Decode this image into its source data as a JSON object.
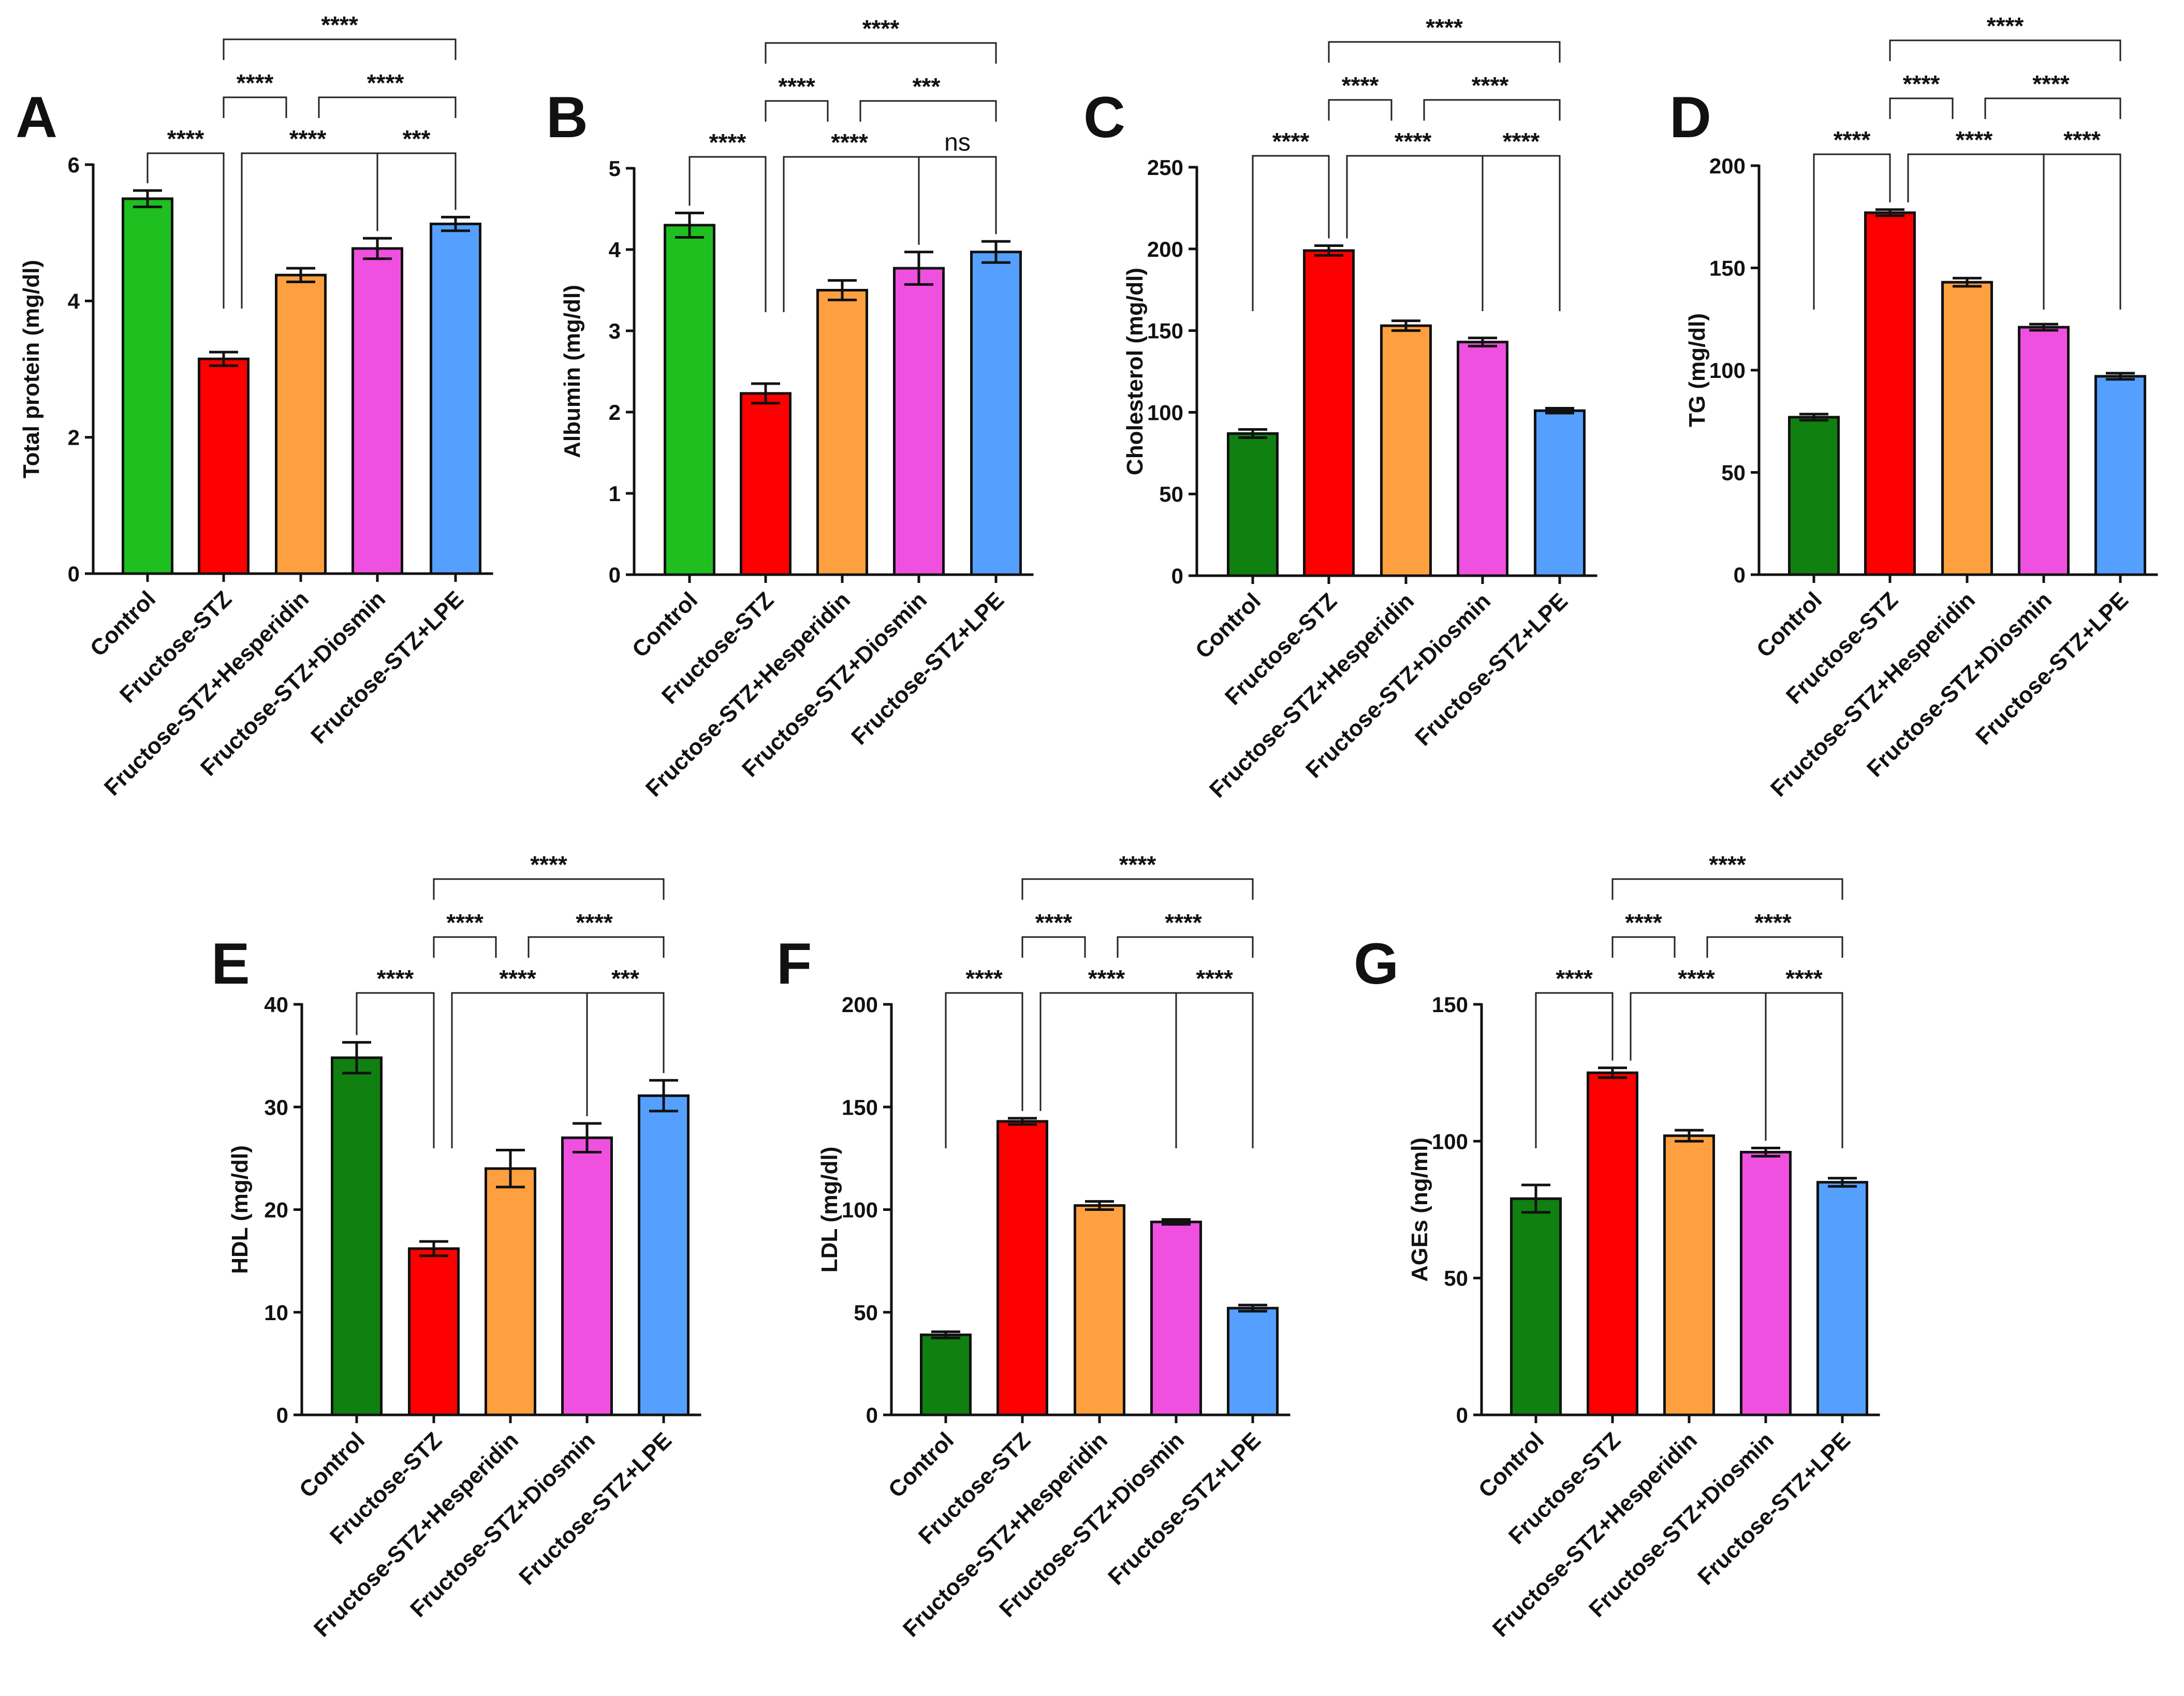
{
  "colors": {
    "control_light": "#1fbf1f",
    "control_dark": "#108010",
    "stz": "#ff0000",
    "hesperidin": "#ffa040",
    "diosmin": "#f050e0",
    "lpe": "#55a0ff"
  },
  "groups": [
    "Control",
    "Fructose-STZ",
    "Fructose-STZ+Hesperidin",
    "Fructose-STZ+Diosmin",
    "Fructose-STZ+LPE"
  ],
  "chart_data": [
    {
      "letter": "A",
      "type": "bar",
      "ylabel": "Total protein (mg/dl)",
      "ylim": [
        0,
        6
      ],
      "yticks": [
        0,
        2,
        4,
        6
      ],
      "categories": [
        "Control",
        "Fructose-STZ",
        "Fructose-STZ+Hesperidin",
        "Fructose-STZ+Diosmin",
        "Fructose-STZ+LPE"
      ],
      "values": [
        5.5,
        3.15,
        4.38,
        4.77,
        5.13
      ],
      "errors": [
        0.12,
        0.1,
        0.1,
        0.15,
        0.1
      ],
      "control_color": "light",
      "comparisons": [
        {
          "from": 0,
          "to": 1,
          "label": "****"
        },
        {
          "from": 1,
          "to": 3,
          "label": "****"
        },
        {
          "from": 3,
          "to": 4,
          "label": "***"
        },
        {
          "from": 1,
          "to": 2,
          "label": "****"
        },
        {
          "from": 2,
          "to": 4,
          "label": "****"
        },
        {
          "from": 1,
          "to": 4,
          "label": "****"
        }
      ]
    },
    {
      "letter": "B",
      "type": "bar",
      "ylabel": "Albumin (mg/dl)",
      "ylim": [
        0,
        5
      ],
      "yticks": [
        0,
        1,
        2,
        3,
        4,
        5
      ],
      "categories": [
        "Control",
        "Fructose-STZ",
        "Fructose-STZ+Hesperidin",
        "Fructose-STZ+Diosmin",
        "Fructose-STZ+LPE"
      ],
      "values": [
        4.3,
        2.23,
        3.5,
        3.77,
        3.97
      ],
      "errors": [
        0.15,
        0.12,
        0.12,
        0.2,
        0.13
      ],
      "control_color": "light",
      "comparisons": [
        {
          "from": 0,
          "to": 1,
          "label": "****"
        },
        {
          "from": 1,
          "to": 3,
          "label": "****"
        },
        {
          "from": 3,
          "to": 4,
          "label": "ns"
        },
        {
          "from": 1,
          "to": 2,
          "label": "****"
        },
        {
          "from": 2,
          "to": 4,
          "label": "***"
        },
        {
          "from": 1,
          "to": 4,
          "label": "****"
        }
      ]
    },
    {
      "letter": "C",
      "type": "bar",
      "ylabel": "Cholesterol (mg/dl)",
      "ylim": [
        0,
        250
      ],
      "yticks": [
        0,
        50,
        100,
        150,
        200,
        250
      ],
      "categories": [
        "Control",
        "Fructose-STZ",
        "Fructose-STZ+Hesperidin",
        "Fructose-STZ+Diosmin",
        "Fructose-STZ+LPE"
      ],
      "values": [
        87,
        199,
        153,
        143,
        101
      ],
      "errors": [
        2.5,
        3,
        3,
        2.5,
        1.5
      ],
      "control_color": "dark",
      "comparisons": [
        {
          "from": 0,
          "to": 1,
          "label": "****"
        },
        {
          "from": 1,
          "to": 3,
          "label": "****"
        },
        {
          "from": 3,
          "to": 4,
          "label": "****"
        },
        {
          "from": 1,
          "to": 2,
          "label": "****"
        },
        {
          "from": 2,
          "to": 4,
          "label": "****"
        },
        {
          "from": 1,
          "to": 4,
          "label": "****"
        }
      ]
    },
    {
      "letter": "D",
      "type": "bar",
      "ylabel": "TG (mg/dl)",
      "ylim": [
        0,
        200
      ],
      "yticks": [
        0,
        50,
        100,
        150,
        200
      ],
      "categories": [
        "Control",
        "Fructose-STZ",
        "Fructose-STZ+Hesperidin",
        "Fructose-STZ+Diosmin",
        "Fructose-STZ+LPE"
      ],
      "values": [
        77,
        177,
        143,
        121,
        97
      ],
      "errors": [
        1.5,
        1.5,
        2,
        1.5,
        1.5
      ],
      "control_color": "dark",
      "comparisons": [
        {
          "from": 0,
          "to": 1,
          "label": "****"
        },
        {
          "from": 1,
          "to": 3,
          "label": "****"
        },
        {
          "from": 3,
          "to": 4,
          "label": "****"
        },
        {
          "from": 1,
          "to": 2,
          "label": "****"
        },
        {
          "from": 2,
          "to": 4,
          "label": "****"
        },
        {
          "from": 1,
          "to": 4,
          "label": "****"
        }
      ]
    },
    {
      "letter": "E",
      "type": "bar",
      "ylabel": "HDL (mg/dl)",
      "ylim": [
        0,
        40
      ],
      "yticks": [
        0,
        10,
        20,
        30,
        40
      ],
      "categories": [
        "Control",
        "Fructose-STZ",
        "Fructose-STZ+Hesperidin",
        "Fructose-STZ+Diosmin",
        "Fructose-STZ+LPE"
      ],
      "values": [
        34.8,
        16.2,
        24,
        27,
        31.1
      ],
      "errors": [
        1.5,
        0.7,
        1.8,
        1.4,
        1.5
      ],
      "control_color": "dark",
      "comparisons": [
        {
          "from": 0,
          "to": 1,
          "label": "****"
        },
        {
          "from": 1,
          "to": 3,
          "label": "****"
        },
        {
          "from": 3,
          "to": 4,
          "label": "***"
        },
        {
          "from": 1,
          "to": 2,
          "label": "****"
        },
        {
          "from": 2,
          "to": 4,
          "label": "****"
        },
        {
          "from": 1,
          "to": 4,
          "label": "****"
        }
      ]
    },
    {
      "letter": "F",
      "type": "bar",
      "ylabel": "LDL (mg/dl)",
      "ylim": [
        0,
        200
      ],
      "yticks": [
        0,
        50,
        100,
        150,
        200
      ],
      "categories": [
        "Control",
        "Fructose-STZ",
        "Fructose-STZ+Hesperidin",
        "Fructose-STZ+Diosmin",
        "Fructose-STZ+LPE"
      ],
      "values": [
        39,
        143,
        102,
        94,
        52
      ],
      "errors": [
        1.5,
        1.5,
        2,
        1.2,
        1.5
      ],
      "control_color": "dark",
      "comparisons": [
        {
          "from": 0,
          "to": 1,
          "label": "****"
        },
        {
          "from": 1,
          "to": 3,
          "label": "****"
        },
        {
          "from": 3,
          "to": 4,
          "label": "****"
        },
        {
          "from": 1,
          "to": 2,
          "label": "****"
        },
        {
          "from": 2,
          "to": 4,
          "label": "****"
        },
        {
          "from": 1,
          "to": 4,
          "label": "****"
        }
      ]
    },
    {
      "letter": "G",
      "type": "bar",
      "ylabel": "AGEs (ng/ml)",
      "ylim": [
        0,
        150
      ],
      "yticks": [
        0,
        50,
        100,
        150
      ],
      "categories": [
        "Control",
        "Fructose-STZ",
        "Fructose-STZ+Hesperidin",
        "Fructose-STZ+Diosmin",
        "Fructose-STZ+LPE"
      ],
      "values": [
        79,
        125,
        102,
        96,
        85
      ],
      "errors": [
        5,
        1.8,
        2,
        1.5,
        1.5
      ],
      "control_color": "dark",
      "comparisons": [
        {
          "from": 0,
          "to": 1,
          "label": "****"
        },
        {
          "from": 1,
          "to": 3,
          "label": "****"
        },
        {
          "from": 3,
          "to": 4,
          "label": "****"
        },
        {
          "from": 1,
          "to": 2,
          "label": "****"
        },
        {
          "from": 2,
          "to": 4,
          "label": "****"
        },
        {
          "from": 1,
          "to": 4,
          "label": "****"
        }
      ]
    }
  ]
}
